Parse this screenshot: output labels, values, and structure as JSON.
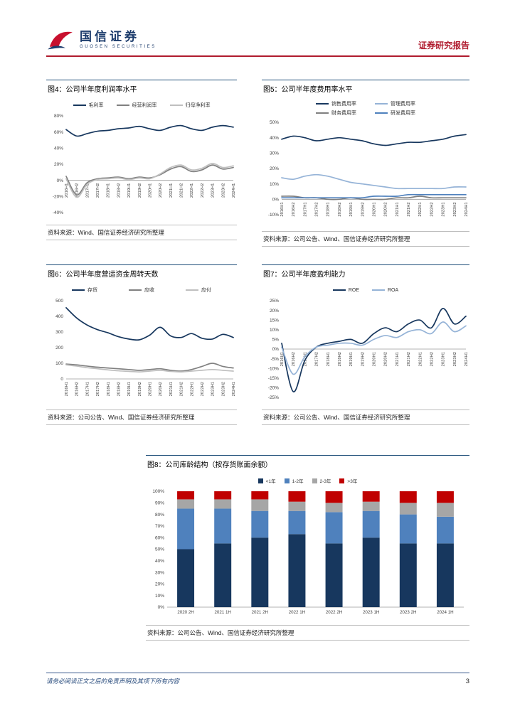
{
  "header": {
    "brand": "国信证券",
    "brand_en": "GUOSEN SECURITIES",
    "report_type": "证券研究报告"
  },
  "colors": {
    "brand_navy": "#17375E",
    "accent_red": "#B01B2E",
    "series_gray": "#808080",
    "series_light_gray": "#BFBFBF",
    "series_light_blue": "#95B3D7",
    "series_medium_blue": "#4F81BD",
    "series_red": "#C00000"
  },
  "figures": {
    "fig4": {
      "title": "图4：公司半年度利润率水平",
      "source": "资料来源：Wind、国信证券经济研究所整理"
    },
    "fig5": {
      "title": "图5：公司半年度费用率水平",
      "source": "资料来源：公司公告、Wind、国信证券经济研究所整理"
    },
    "fig6": {
      "title": "图6：公司半年度营运资金周转天数",
      "source": "资料来源：公司公告、Wind、国信证券经济研究所整理"
    },
    "fig7": {
      "title": "图7：公司半年度盈利能力",
      "source": "资料来源：公司公告、Wind、国信证券经济研究所整理"
    },
    "fig8": {
      "title": "图8：公司库龄结构（按存货账面余额）",
      "source": "资料来源：公司公告、Wind、国信证券经济研究所整理"
    }
  },
  "footer": {
    "disclaimer": "请务必阅读正文之后的免责声明及其项下所有内容",
    "page_number": "3"
  },
  "chart_data": [
    {
      "id": "fig4",
      "type": "line",
      "title": "公司半年度利润率水平",
      "categories": [
        "2016H1",
        "2016H2",
        "2017H1",
        "2017H2",
        "2018H1",
        "2018H2",
        "2019H1",
        "2019H2",
        "2020H1",
        "2020H2",
        "2021H1",
        "2021H2",
        "2022H1",
        "2022H2",
        "2023H1",
        "2023H2",
        "2024H1"
      ],
      "series": [
        {
          "name": "毛利率",
          "color": "#17375E",
          "values": [
            63,
            55,
            58,
            61,
            62,
            64,
            65,
            67,
            64,
            62,
            66,
            68,
            64,
            62,
            66,
            68,
            66
          ]
        },
        {
          "name": "经营利润率",
          "color": "#808080",
          "values": [
            5,
            -18,
            -3,
            2,
            3,
            4,
            2,
            4,
            3,
            7,
            14,
            17,
            11,
            13,
            19,
            14,
            16
          ]
        },
        {
          "name": "归母净利率",
          "color": "#BFBFBF",
          "values": [
            2,
            -21,
            -5,
            1,
            2,
            3,
            1,
            3,
            2,
            8,
            16,
            19,
            13,
            15,
            21,
            16,
            18
          ]
        }
      ],
      "ylim": [
        -40,
        80
      ],
      "ytick": 20,
      "percent": true,
      "grid": false,
      "legend_position": "top"
    },
    {
      "id": "fig5",
      "type": "line",
      "title": "公司半年度费用率水平",
      "categories": [
        "2016H1",
        "2016H2",
        "2017H1",
        "2017H2",
        "2018H1",
        "2018H2",
        "2019H1",
        "2019H2",
        "2020H1",
        "2020H2",
        "2021H1",
        "2021H2",
        "2022H1",
        "2022H2",
        "2023H1",
        "2023H2",
        "2024H1"
      ],
      "series": [
        {
          "name": "销售费用率",
          "color": "#17375E",
          "values": [
            39,
            41,
            40,
            38,
            39,
            40,
            39,
            38,
            36,
            35,
            36,
            37,
            37,
            38,
            39,
            41,
            42
          ]
        },
        {
          "name": "管理费用率",
          "color": "#95B3D7",
          "values": [
            14,
            13,
            15,
            16,
            15,
            13,
            11,
            10,
            9,
            8,
            7,
            7,
            7,
            7,
            7,
            8,
            8
          ]
        },
        {
          "name": "财务费用率",
          "color": "#808080",
          "values": [
            2,
            2,
            1,
            1,
            0,
            0,
            1,
            0,
            0,
            0,
            1,
            1,
            2,
            1,
            1,
            1,
            1
          ]
        },
        {
          "name": "研发费用率",
          "color": "#4F81BD",
          "values": [
            1,
            1,
            1,
            1,
            1,
            1,
            1,
            1,
            2,
            2,
            2,
            3,
            3,
            3,
            3,
            3,
            3
          ]
        }
      ],
      "ylim": [
        -10,
        50
      ],
      "ytick": 10,
      "percent": true,
      "grid": false,
      "legend_position": "top"
    },
    {
      "id": "fig6",
      "type": "line",
      "title": "公司半年度营运资金周转天数",
      "categories": [
        "2016H1",
        "2016H2",
        "2017H1",
        "2017H2",
        "2018H1",
        "2018H2",
        "2019H1",
        "2019H2",
        "2020H1",
        "2020H2",
        "2021H1",
        "2021H2",
        "2022H1",
        "2022H2",
        "2023H1",
        "2023H2",
        "2024H1"
      ],
      "series": [
        {
          "name": "存货",
          "color": "#17375E",
          "values": [
            455,
            390,
            345,
            315,
            295,
            270,
            255,
            250,
            280,
            330,
            275,
            265,
            290,
            260,
            255,
            285,
            265
          ]
        },
        {
          "name": "应收",
          "color": "#808080",
          "values": [
            95,
            90,
            82,
            75,
            70,
            65,
            60,
            55,
            60,
            65,
            55,
            50,
            60,
            80,
            100,
            80,
            70
          ]
        },
        {
          "name": "应付",
          "color": "#BFBFBF",
          "values": [
            90,
            82,
            72,
            65,
            58,
            52,
            48,
            45,
            50,
            55,
            48,
            45,
            50,
            55,
            60,
            55,
            50
          ]
        }
      ],
      "ylim": [
        0,
        500
      ],
      "ytick": 100,
      "percent": false,
      "grid": false,
      "legend_position": "top"
    },
    {
      "id": "fig7",
      "type": "line",
      "title": "公司半年度盈利能力",
      "categories": [
        "2016H1",
        "2016H2",
        "2017H1",
        "2017H2",
        "2018H1",
        "2018H2",
        "2019H1",
        "2019H2",
        "2020H1",
        "2020H2",
        "2021H1",
        "2021H2",
        "2022H1",
        "2022H2",
        "2023H1",
        "2023H2",
        "2024H1"
      ],
      "series": [
        {
          "name": "ROE",
          "color": "#17375E",
          "values": [
            3,
            -22,
            -6,
            1,
            3,
            4,
            5,
            3,
            8,
            11,
            9,
            13,
            15,
            11,
            21,
            13,
            17
          ]
        },
        {
          "name": "ROA",
          "color": "#95B3D7",
          "values": [
            1,
            -13,
            -4,
            1,
            2,
            3,
            3,
            2,
            5,
            7,
            6,
            9,
            10,
            8,
            14,
            9,
            12
          ]
        }
      ],
      "ylim": [
        -25,
        25
      ],
      "ytick": 5,
      "percent": true,
      "grid": false,
      "legend_position": "top"
    },
    {
      "id": "fig8",
      "type": "stacked-bar",
      "title": "公司库龄结构（按存货账面余额）",
      "categories": [
        "2020 2H",
        "2021 1H",
        "2021 2H",
        "2022 1H",
        "2022 2H",
        "2023 1H",
        "2023 2H",
        "2024 1H"
      ],
      "series": [
        {
          "name": "<1年",
          "color": "#17375E",
          "values": [
            50,
            55,
            60,
            63,
            55,
            60,
            55,
            55
          ]
        },
        {
          "name": "1-2年",
          "color": "#4F81BD",
          "values": [
            35,
            30,
            23,
            20,
            27,
            23,
            25,
            23
          ]
        },
        {
          "name": "2-3年",
          "color": "#A6A6A6",
          "values": [
            8,
            8,
            10,
            8,
            8,
            8,
            10,
            12
          ]
        },
        {
          "name": ">3年",
          "color": "#C00000",
          "values": [
            7,
            7,
            7,
            9,
            10,
            9,
            10,
            10
          ]
        }
      ],
      "ylim": [
        0,
        100
      ],
      "ytick": 10,
      "percent": true,
      "grid": false,
      "legend_position": "top"
    }
  ]
}
